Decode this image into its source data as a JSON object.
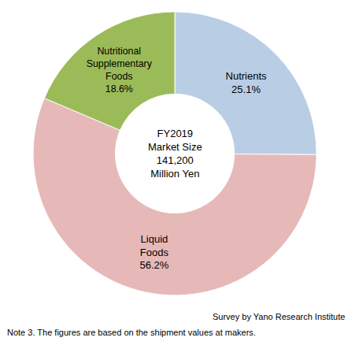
{
  "chart_data": {
    "type": "pie",
    "categories": [
      "Nutrients",
      "Liquid Foods",
      "Nutritional Supplementary Foods"
    ],
    "values": [
      25.1,
      56.2,
      18.6
    ],
    "value_labels": [
      "25.1%",
      "56.2%",
      "18.6%"
    ],
    "colors": [
      "#b9cde5",
      "#e6b9b8",
      "#9bbb59"
    ],
    "data_labels": true,
    "center_text": [
      "FY2019",
      "Market Size",
      "141,200",
      "Million Yen"
    ],
    "source": "Survey by Yano Research Institute",
    "note": "Note 3. The figures are based on the shipment values at makers."
  }
}
